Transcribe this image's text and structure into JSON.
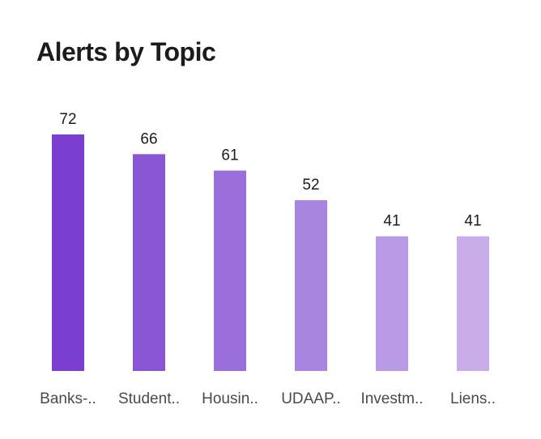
{
  "chart_data": {
    "type": "bar",
    "title": "Alerts by Topic",
    "categories": [
      "Banks-..",
      "Student..",
      "Housin..",
      "UDAAP..",
      "Investm..",
      "Liens.."
    ],
    "values": [
      72,
      66,
      61,
      52,
      41,
      41
    ],
    "bar_colors": [
      "#7a3fd1",
      "#8a56d6",
      "#9a6fdc",
      "#a886e0",
      "#b89ae5",
      "#c9ade9"
    ],
    "ylim": [
      0,
      72
    ],
    "grid": false,
    "legend": "none",
    "data_labels": true
  }
}
